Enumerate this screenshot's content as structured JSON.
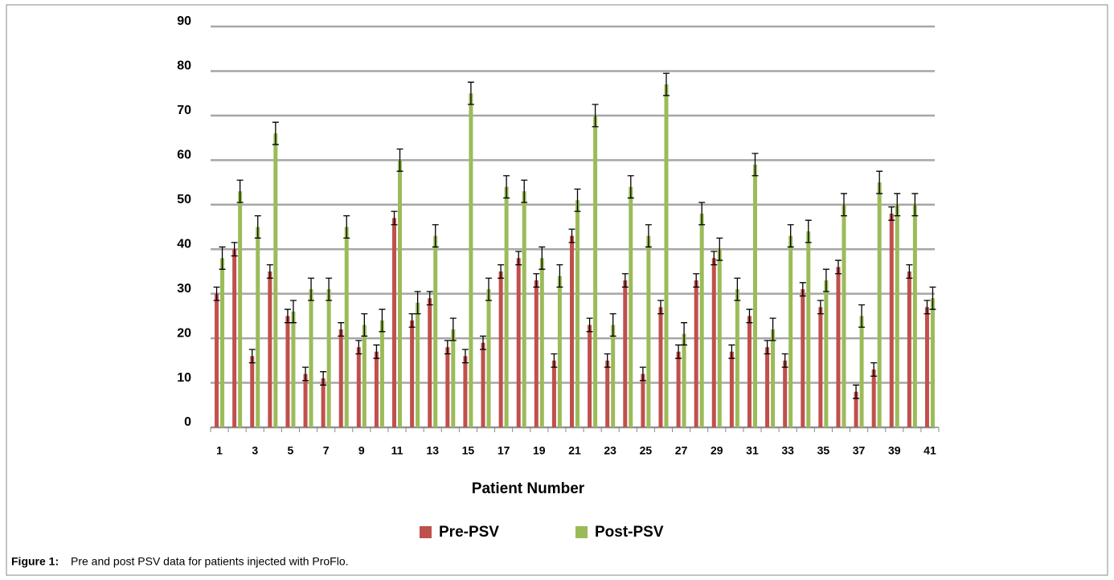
{
  "chart_data": {
    "type": "bar",
    "x_label": "Patient Number",
    "caption_label": "Figure 1:",
    "caption": "Pre and post PSV data for patients injected with ProFlo.",
    "categories": [
      "1",
      null,
      "3",
      null,
      "5",
      null,
      "7",
      null,
      "9",
      null,
      "11",
      null,
      "13",
      null,
      "15",
      null,
      "17",
      null,
      "19",
      null,
      "21",
      null,
      "23",
      null,
      "25",
      null,
      "27",
      null,
      "29",
      null,
      "31",
      null,
      "33",
      null,
      "35",
      null,
      "37",
      null,
      "39",
      null,
      "41"
    ],
    "series": [
      {
        "name": "Pre-PSV",
        "color": "#c0504d",
        "values": [
          30,
          40,
          16,
          35,
          25,
          12,
          11,
          22,
          18,
          17,
          47,
          24,
          29,
          18,
          16,
          19,
          35,
          38,
          33,
          15,
          43,
          23,
          15,
          33,
          12,
          27,
          17,
          33,
          38,
          17,
          25,
          18,
          15,
          31,
          27,
          36,
          8,
          13,
          48,
          35,
          27
        ],
        "errors": [
          1.5,
          1.5,
          1.5,
          1.5,
          1.5,
          1.5,
          1.5,
          1.5,
          1.5,
          1.5,
          1.5,
          1.5,
          1.5,
          1.5,
          1.5,
          1.5,
          1.5,
          1.5,
          1.5,
          1.5,
          1.5,
          1.5,
          1.5,
          1.5,
          1.5,
          1.5,
          1.5,
          1.5,
          1.5,
          1.5,
          1.5,
          1.5,
          1.5,
          1.5,
          1.5,
          1.5,
          1.5,
          1.5,
          1.5,
          1.5,
          1.5
        ]
      },
      {
        "name": "Post-PSV",
        "color": "#9bbb59",
        "values": [
          38,
          53,
          45,
          66,
          26,
          31,
          31,
          45,
          23,
          24,
          60,
          28,
          43,
          22,
          75,
          31,
          54,
          53,
          38,
          34,
          51,
          70,
          23,
          54,
          43,
          77,
          21,
          48,
          40,
          31,
          59,
          22,
          43,
          44,
          33,
          50,
          25,
          55,
          50,
          50,
          29
        ],
        "errors": [
          2.5,
          2.5,
          2.5,
          2.5,
          2.5,
          2.5,
          2.5,
          2.5,
          2.5,
          2.5,
          2.5,
          2.5,
          2.5,
          2.5,
          2.5,
          2.5,
          2.5,
          2.5,
          2.5,
          2.5,
          2.5,
          2.5,
          2.5,
          2.5,
          2.5,
          2.5,
          2.5,
          2.5,
          2.5,
          2.5,
          2.5,
          2.5,
          2.5,
          2.5,
          2.5,
          2.5,
          2.5,
          2.5,
          2.5,
          2.5,
          2.5
        ]
      }
    ],
    "ylim": [
      0,
      90
    ],
    "yticks": [
      0,
      10,
      20,
      30,
      40,
      50,
      60,
      70,
      80,
      90
    ],
    "grid": true
  }
}
